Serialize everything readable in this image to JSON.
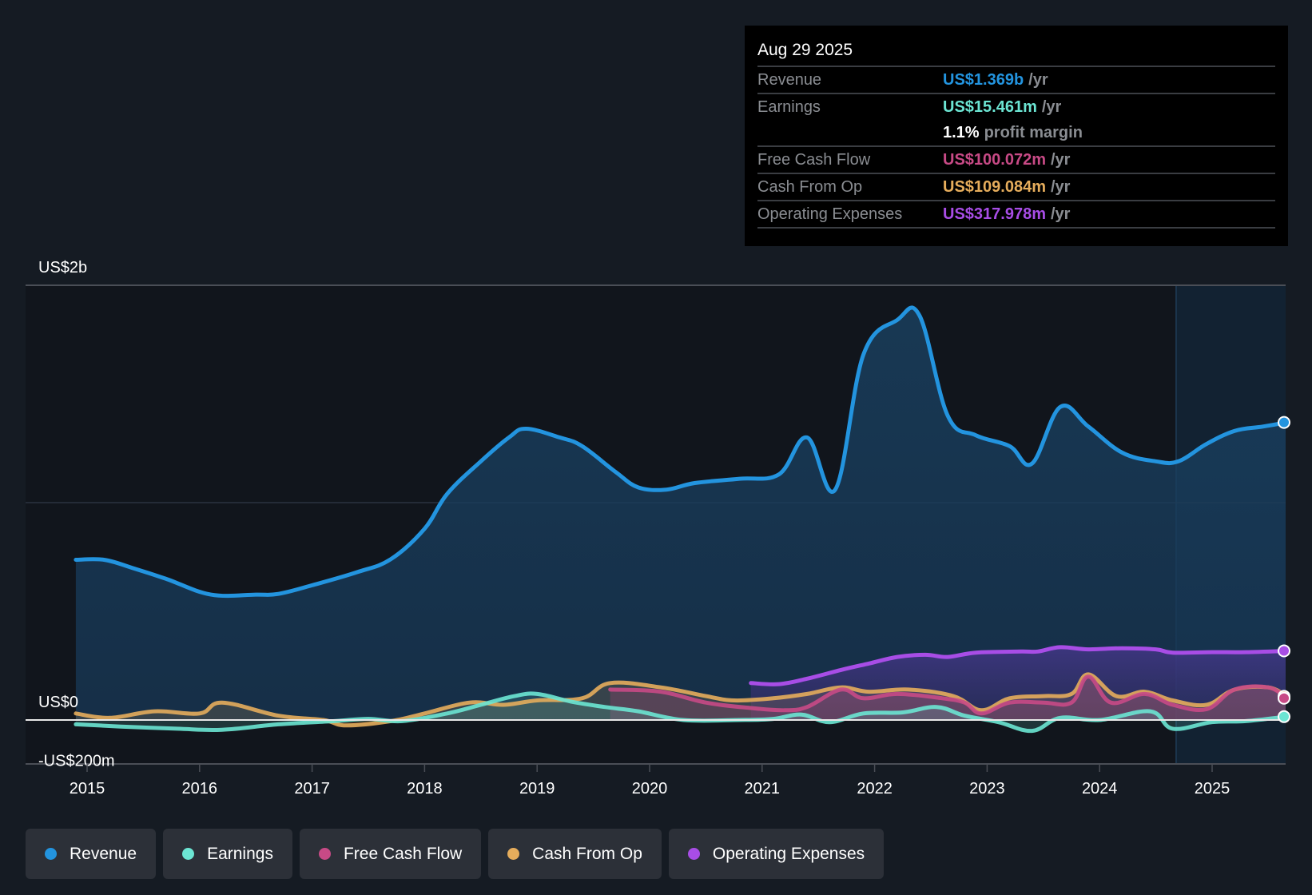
{
  "tooltip": {
    "date": "Aug 29 2025",
    "rows": [
      {
        "label": "Revenue",
        "value": "US$1.369b",
        "unit": "/yr",
        "color": "#2394df"
      },
      {
        "label": "Earnings",
        "value": "US$15.461m",
        "unit": "/yr",
        "color": "#6ce5d3"
      },
      {
        "label": "",
        "value": "1.1%",
        "unit": "profit margin",
        "color": "#ffffff"
      },
      {
        "label": "Free Cash Flow",
        "value": "US$100.072m",
        "unit": "/yr",
        "color": "#c84a86"
      },
      {
        "label": "Cash From Op",
        "value": "US$109.084m",
        "unit": "/yr",
        "color": "#e6ad5c"
      },
      {
        "label": "Operating Expenses",
        "value": "US$317.978m",
        "unit": "/yr",
        "color": "#a84de6"
      }
    ]
  },
  "legend": [
    {
      "label": "Revenue",
      "color": "#2394df"
    },
    {
      "label": "Earnings",
      "color": "#6ce5d3"
    },
    {
      "label": "Free Cash Flow",
      "color": "#c84a86"
    },
    {
      "label": "Cash From Op",
      "color": "#e6ad5c"
    },
    {
      "label": "Operating Expenses",
      "color": "#a84de6"
    }
  ],
  "chart_data": {
    "type": "area",
    "title": "",
    "xlabel": "",
    "ylabel": "",
    "y_tick_labels": [
      "US$2b",
      "US$0",
      "-US$200m"
    ],
    "y_ticks": [
      2000,
      0,
      -200
    ],
    "ylim": [
      -200,
      2000
    ],
    "xlim": [
      2014.55,
      2025.67
    ],
    "x_tick_labels": [
      "2015",
      "2016",
      "2017",
      "2018",
      "2019",
      "2020",
      "2021",
      "2022",
      "2023",
      "2024",
      "2025"
    ],
    "x_ticks": [
      2015,
      2016,
      2017,
      2018,
      2019,
      2020,
      2021,
      2022,
      2023,
      2024,
      2025
    ],
    "forecast_region_start": 2024.68,
    "grid": true,
    "unit": "US$ millions",
    "series": [
      {
        "name": "Revenue",
        "color": "#2394df",
        "points": [
          [
            2014.9,
            737
          ],
          [
            2015.15,
            737
          ],
          [
            2015.4,
            700
          ],
          [
            2015.7,
            650
          ],
          [
            2016.1,
            577
          ],
          [
            2016.5,
            577
          ],
          [
            2016.7,
            580
          ],
          [
            2017.0,
            620
          ],
          [
            2017.4,
            680
          ],
          [
            2017.7,
            740
          ],
          [
            2018.0,
            880
          ],
          [
            2018.2,
            1040
          ],
          [
            2018.5,
            1190
          ],
          [
            2018.75,
            1300
          ],
          [
            2018.9,
            1340
          ],
          [
            2019.2,
            1300
          ],
          [
            2019.4,
            1260
          ],
          [
            2019.7,
            1140
          ],
          [
            2019.9,
            1070
          ],
          [
            2020.15,
            1060
          ],
          [
            2020.4,
            1090
          ],
          [
            2020.8,
            1110
          ],
          [
            2021.15,
            1130
          ],
          [
            2021.4,
            1300
          ],
          [
            2021.65,
            1060
          ],
          [
            2021.9,
            1680
          ],
          [
            2022.2,
            1840
          ],
          [
            2022.4,
            1860
          ],
          [
            2022.65,
            1400
          ],
          [
            2022.9,
            1310
          ],
          [
            2023.2,
            1260
          ],
          [
            2023.4,
            1180
          ],
          [
            2023.65,
            1440
          ],
          [
            2023.9,
            1350
          ],
          [
            2024.2,
            1230
          ],
          [
            2024.5,
            1190
          ],
          [
            2024.7,
            1190
          ],
          [
            2024.95,
            1270
          ],
          [
            2025.2,
            1330
          ],
          [
            2025.45,
            1350
          ],
          [
            2025.66,
            1369
          ]
        ]
      },
      {
        "name": "Earnings",
        "color": "#6ce5d3",
        "points": [
          [
            2014.9,
            -20
          ],
          [
            2015.3,
            -30
          ],
          [
            2015.8,
            -40
          ],
          [
            2016.2,
            -45
          ],
          [
            2016.7,
            -20
          ],
          [
            2017.2,
            -5
          ],
          [
            2017.5,
            5
          ],
          [
            2017.8,
            -5
          ],
          [
            2018.2,
            30
          ],
          [
            2018.5,
            70
          ],
          [
            2018.8,
            110
          ],
          [
            2019.0,
            120
          ],
          [
            2019.3,
            85
          ],
          [
            2019.6,
            60
          ],
          [
            2019.9,
            40
          ],
          [
            2020.3,
            0
          ],
          [
            2020.8,
            0
          ],
          [
            2021.1,
            5
          ],
          [
            2021.35,
            25
          ],
          [
            2021.6,
            -10
          ],
          [
            2021.9,
            30
          ],
          [
            2022.25,
            35
          ],
          [
            2022.55,
            60
          ],
          [
            2022.8,
            20
          ],
          [
            2023.1,
            -10
          ],
          [
            2023.4,
            -50
          ],
          [
            2023.65,
            10
          ],
          [
            2024.0,
            0
          ],
          [
            2024.45,
            40
          ],
          [
            2024.65,
            -40
          ],
          [
            2025.0,
            -10
          ],
          [
            2025.3,
            -5
          ],
          [
            2025.66,
            15.461
          ]
        ]
      },
      {
        "name": "Free Cash Flow",
        "color": "#c84a86",
        "points": [
          [
            2019.65,
            140
          ],
          [
            2020.1,
            130
          ],
          [
            2020.5,
            80
          ],
          [
            2020.9,
            55
          ],
          [
            2021.2,
            45
          ],
          [
            2021.4,
            60
          ],
          [
            2021.7,
            140
          ],
          [
            2021.9,
            100
          ],
          [
            2022.2,
            120
          ],
          [
            2022.6,
            100
          ],
          [
            2022.8,
            80
          ],
          [
            2022.95,
            30
          ],
          [
            2023.2,
            80
          ],
          [
            2023.5,
            80
          ],
          [
            2023.75,
            80
          ],
          [
            2023.9,
            200
          ],
          [
            2024.1,
            80
          ],
          [
            2024.4,
            120
          ],
          [
            2024.65,
            70
          ],
          [
            2024.95,
            50
          ],
          [
            2025.2,
            140
          ],
          [
            2025.5,
            150
          ],
          [
            2025.66,
            100.072
          ]
        ]
      },
      {
        "name": "Cash From Op",
        "color": "#e6ad5c",
        "points": [
          [
            2014.9,
            30
          ],
          [
            2015.2,
            10
          ],
          [
            2015.6,
            40
          ],
          [
            2016.0,
            30
          ],
          [
            2016.2,
            80
          ],
          [
            2016.7,
            20
          ],
          [
            2017.1,
            0
          ],
          [
            2017.3,
            -25
          ],
          [
            2017.7,
            -5
          ],
          [
            2018.0,
            30
          ],
          [
            2018.4,
            80
          ],
          [
            2018.7,
            70
          ],
          [
            2019.0,
            90
          ],
          [
            2019.4,
            100
          ],
          [
            2019.65,
            170
          ],
          [
            2020.1,
            150
          ],
          [
            2020.5,
            110
          ],
          [
            2020.75,
            90
          ],
          [
            2021.1,
            100
          ],
          [
            2021.4,
            120
          ],
          [
            2021.7,
            150
          ],
          [
            2021.95,
            130
          ],
          [
            2022.3,
            140
          ],
          [
            2022.7,
            110
          ],
          [
            2022.95,
            45
          ],
          [
            2023.2,
            100
          ],
          [
            2023.5,
            110
          ],
          [
            2023.75,
            120
          ],
          [
            2023.9,
            210
          ],
          [
            2024.15,
            110
          ],
          [
            2024.4,
            130
          ],
          [
            2024.65,
            90
          ],
          [
            2024.95,
            70
          ],
          [
            2025.2,
            140
          ],
          [
            2025.5,
            150
          ],
          [
            2025.66,
            109.084
          ]
        ]
      },
      {
        "name": "Operating Expenses",
        "color": "#a84de6",
        "points": [
          [
            2020.9,
            170
          ],
          [
            2021.15,
            165
          ],
          [
            2021.4,
            190
          ],
          [
            2021.7,
            230
          ],
          [
            2021.95,
            260
          ],
          [
            2022.2,
            290
          ],
          [
            2022.45,
            300
          ],
          [
            2022.65,
            290
          ],
          [
            2022.9,
            310
          ],
          [
            2023.3,
            315
          ],
          [
            2023.45,
            315
          ],
          [
            2023.65,
            335
          ],
          [
            2023.9,
            325
          ],
          [
            2024.2,
            330
          ],
          [
            2024.5,
            325
          ],
          [
            2024.65,
            310
          ],
          [
            2025.0,
            312
          ],
          [
            2025.3,
            312
          ],
          [
            2025.66,
            317.978
          ]
        ]
      }
    ]
  }
}
